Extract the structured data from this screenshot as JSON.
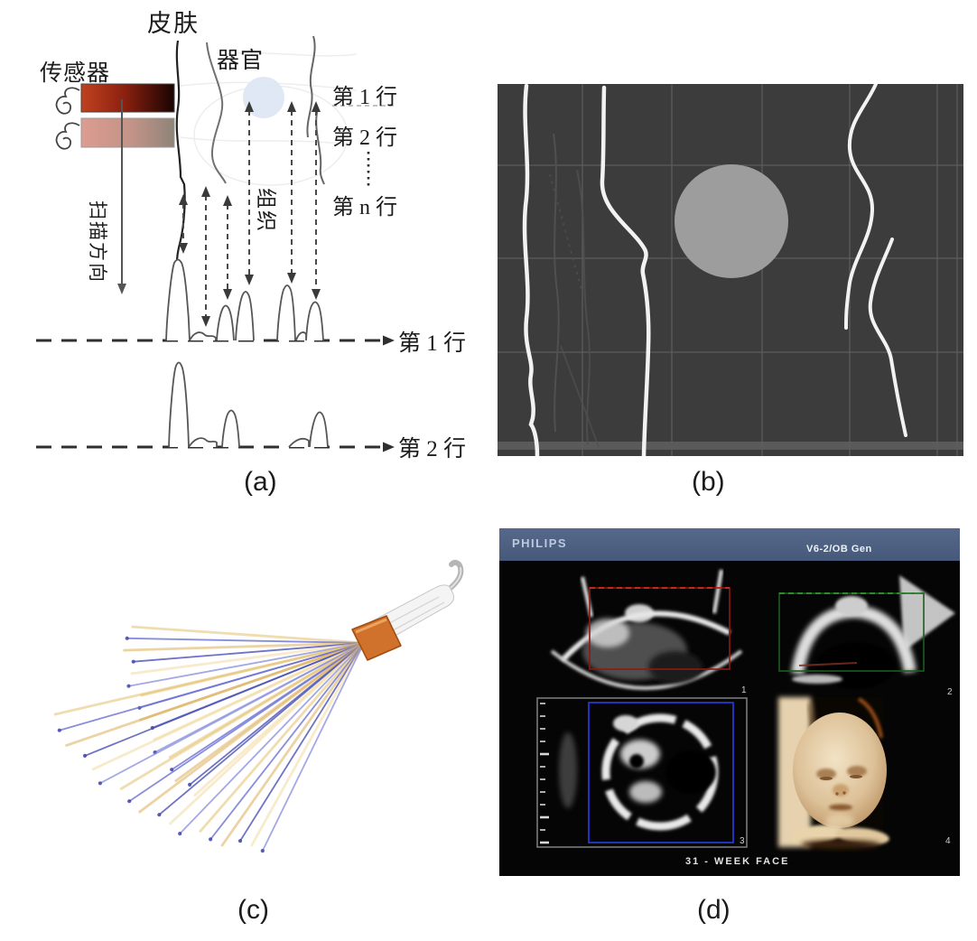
{
  "figure": {
    "panels": {
      "a": {
        "caption": "(a)",
        "labels": {
          "skin": "皮肤",
          "sensor": "传感器",
          "organ": "器官",
          "tissue": "组织",
          "scan_direction": "扫描方向",
          "row1_list": "第 1 行",
          "row2_list": "第 2 行",
          "rown_list": "第 n 行",
          "row1_axis": "第 1 行",
          "row2_axis": "第 2 行"
        },
        "colors": {
          "transducer_active": "#8e2110",
          "transducer_inactive": "#c29388"
        }
      },
      "b": {
        "caption": "(b)",
        "colors": {
          "background": "#3c3c3c",
          "grid": "#616161",
          "boundary": "#f2f2f2",
          "inclusion": "#9d9d9d"
        }
      },
      "c": {
        "caption": "(c)",
        "colors": {
          "beam_blue": "#5a5fc4",
          "beam_yellow": "#e2bb60",
          "probe_tip_orange": "#d1722c"
        }
      },
      "d": {
        "caption": "(d)",
        "brand": "PHILIPS",
        "preset": "V6-2/OB Gen",
        "annotation": "31 - WEEK  FACE",
        "quadrant_numbers": [
          "1",
          "2",
          "3",
          "4"
        ],
        "roi_colors": {
          "red": "#a02018",
          "green": "#1d5c20",
          "blue": "#2233bb"
        }
      }
    }
  }
}
